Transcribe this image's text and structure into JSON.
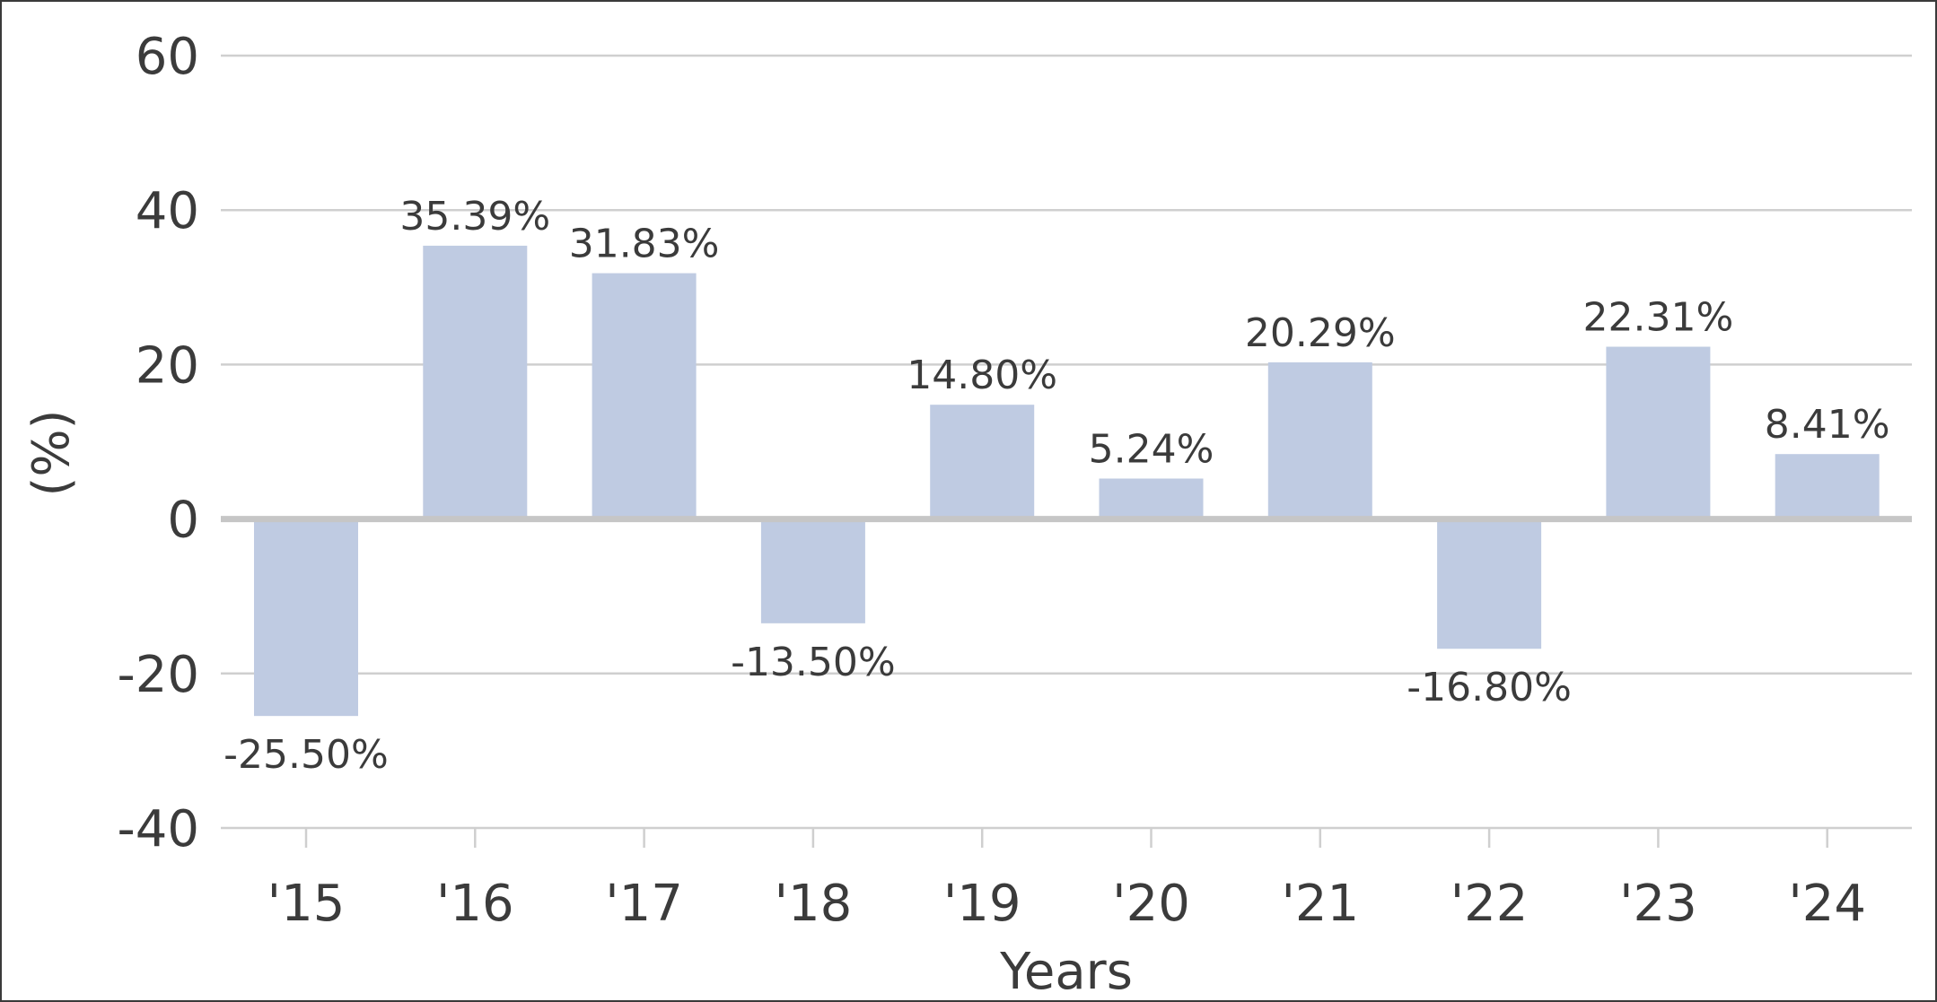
{
  "chart_data": {
    "type": "bar",
    "categories": [
      "'15",
      "'16",
      "'17",
      "'18",
      "'19",
      "'20",
      "'21",
      "'22",
      "'23",
      "'24"
    ],
    "values": [
      -25.5,
      35.39,
      31.83,
      -13.5,
      14.8,
      5.24,
      20.29,
      -16.8,
      22.31,
      8.41
    ],
    "data_labels": [
      "-25.50%",
      "35.39%",
      "31.83%",
      "-13.50%",
      "14.80%",
      "5.24%",
      "20.29%",
      "-16.80%",
      "22.31%",
      "8.41%"
    ],
    "xlabel": "Years",
    "ylabel": "(%)",
    "ylim": [
      -40,
      60
    ],
    "yticks": [
      -40,
      -20,
      0,
      20,
      40,
      60
    ],
    "ytick_labels": [
      "-40",
      "-20",
      "0",
      "20",
      "40",
      "60"
    ],
    "grid": true,
    "bar_color": "#bfcbe2",
    "grid_color": "#cfcfcf",
    "zero_line_color": "#c6c6c6",
    "text_color": "#3b3b3b"
  }
}
